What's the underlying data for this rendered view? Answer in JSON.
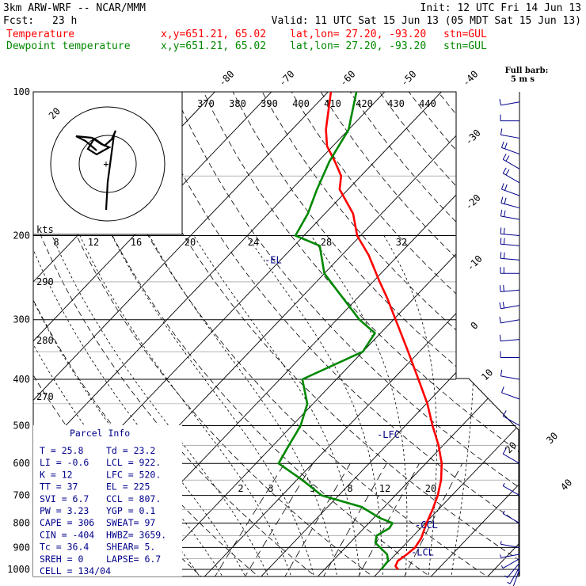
{
  "header": {
    "model": "3km ARW-WRF -- NCAR/MMM",
    "init": "Init: 12 UTC Fri 14 Jun 13",
    "fcst_label": "Fcst:",
    "fcst_value": "23 h",
    "valid": "Valid: 11 UTC Sat 15 Jun 13 (05 MDT Sat 15 Jun 13)",
    "temp_line": {
      "name": "Temperature",
      "loc": "x,y=651.21, 65.02",
      "latlon": "lat,lon= 27.20, -93.20",
      "stn": "stn=GUL"
    },
    "dew_line": {
      "name": "Dewpoint temperature",
      "loc": "x,y=651.21, 65.02",
      "latlon": "lat,lon= 27.20, -93.20",
      "stn": "stn=GUL"
    }
  },
  "colors": {
    "temperature": "#ff0000",
    "dewpoint": "#008800",
    "wind": "#00008b",
    "annotation": "#00008b",
    "grid": "#000000"
  },
  "barb_title": {
    "line1": "Full barb:",
    "line2": "5 m s"
  },
  "chart_data": {
    "type": "line",
    "chart_kind": "skew-T log-P sounding",
    "y_axis": {
      "scale": "log pressure (hPa)",
      "range": [
        1000,
        100
      ],
      "ticks": [
        "100",
        "200",
        "300",
        "400",
        "500",
        "600",
        "700",
        "800",
        "900",
        "1000"
      ]
    },
    "temp_isotherm_labels": [
      "-80",
      "-70",
      "-60",
      "-50",
      "-40",
      "-30",
      "-20",
      "-10",
      "0",
      "10",
      "20",
      "30",
      "40"
    ],
    "theta_labels": [
      "370",
      "380",
      "390",
      "400",
      "410",
      "420",
      "430",
      "440"
    ],
    "mixing_ratio_upper_labels": [
      "8",
      "12",
      "16",
      "20",
      "24",
      "28",
      "32"
    ],
    "mixing_ratio_lower_labels": [
      "2",
      "3",
      "5",
      "8",
      "12",
      "20"
    ],
    "theta_e_labels": [
      "290",
      "280",
      "270"
    ],
    "series": [
      {
        "name": "Temperature",
        "unit": "C",
        "points": [
          [
            1000,
            23
          ],
          [
            985,
            22
          ],
          [
            960,
            21.5
          ],
          [
            930,
            22
          ],
          [
            900,
            22.3
          ],
          [
            860,
            21.8
          ],
          [
            800,
            20.2
          ],
          [
            750,
            19
          ],
          [
            700,
            17.5
          ],
          [
            650,
            15.5
          ],
          [
            600,
            12.8
          ],
          [
            550,
            9.2
          ],
          [
            500,
            4.8
          ],
          [
            450,
            0.2
          ],
          [
            400,
            -5.5
          ],
          [
            350,
            -12
          ],
          [
            300,
            -19.6
          ],
          [
            270,
            -24.8
          ],
          [
            250,
            -28.8
          ],
          [
            220,
            -35.2
          ],
          [
            200,
            -40.6
          ],
          [
            180,
            -45
          ],
          [
            160,
            -51.5
          ],
          [
            150,
            -53.5
          ],
          [
            140,
            -57
          ],
          [
            130,
            -61
          ],
          [
            120,
            -64
          ],
          [
            100,
            -69.5
          ]
        ]
      },
      {
        "name": "Dewpoint temperature",
        "unit": "C",
        "points": [
          [
            1000,
            20
          ],
          [
            960,
            19.8
          ],
          [
            930,
            18.5
          ],
          [
            880,
            14.5
          ],
          [
            850,
            13.5
          ],
          [
            820,
            14.5
          ],
          [
            800,
            14.2
          ],
          [
            780,
            11
          ],
          [
            740,
            6
          ],
          [
            700,
            -3
          ],
          [
            650,
            -9
          ],
          [
            600,
            -16
          ],
          [
            560,
            -17
          ],
          [
            500,
            -18.5
          ],
          [
            450,
            -21
          ],
          [
            400,
            -26
          ],
          [
            350,
            -20
          ],
          [
            320,
            -21
          ],
          [
            300,
            -26
          ],
          [
            260,
            -35
          ],
          [
            240,
            -40
          ],
          [
            210,
            -45.5
          ],
          [
            200,
            -51.5
          ],
          [
            180,
            -53
          ],
          [
            160,
            -55.5
          ],
          [
            140,
            -58
          ],
          [
            120,
            -60
          ],
          [
            100,
            -65
          ]
        ]
      }
    ],
    "levels": [
      {
        "label": "-EL",
        "p": 225
      },
      {
        "label": "-LFC",
        "p": 522
      },
      {
        "label": "-CCL",
        "p": 807
      },
      {
        "label": "-LCL",
        "p": 922
      }
    ],
    "wind_barbs": [
      {
        "p": 1000,
        "dir": 200,
        "spd": 2.5
      },
      {
        "p": 990,
        "dir": 210,
        "spd": 2.5
      },
      {
        "p": 970,
        "dir": 220,
        "spd": 2.5
      },
      {
        "p": 950,
        "dir": 240,
        "spd": 2.5
      },
      {
        "p": 930,
        "dir": 260,
        "spd": 2.5
      },
      {
        "p": 900,
        "dir": 280,
        "spd": 2.5
      },
      {
        "p": 800,
        "dir": 300,
        "spd": 2.5
      },
      {
        "p": 700,
        "dir": 300,
        "spd": 2.5
      },
      {
        "p": 600,
        "dir": 300,
        "spd": 5
      },
      {
        "p": 500,
        "dir": 300,
        "spd": 5
      },
      {
        "p": 440,
        "dir": 290,
        "spd": 5
      },
      {
        "p": 400,
        "dir": 280,
        "spd": 5
      },
      {
        "p": 360,
        "dir": 270,
        "spd": 5
      },
      {
        "p": 330,
        "dir": 265,
        "spd": 5
      },
      {
        "p": 300,
        "dir": 260,
        "spd": 5
      },
      {
        "p": 280,
        "dir": 260,
        "spd": 10
      },
      {
        "p": 260,
        "dir": 265,
        "spd": 10
      },
      {
        "p": 240,
        "dir": 270,
        "spd": 10
      },
      {
        "p": 225,
        "dir": 275,
        "spd": 10
      },
      {
        "p": 210,
        "dir": 275,
        "spd": 10
      },
      {
        "p": 200,
        "dir": 275,
        "spd": 10
      },
      {
        "p": 185,
        "dir": 280,
        "spd": 10
      },
      {
        "p": 175,
        "dir": 285,
        "spd": 10
      },
      {
        "p": 165,
        "dir": 290,
        "spd": 10
      },
      {
        "p": 155,
        "dir": 300,
        "spd": 10
      },
      {
        "p": 145,
        "dir": 300,
        "spd": 10
      },
      {
        "p": 135,
        "dir": 290,
        "spd": 10
      },
      {
        "p": 125,
        "dir": 280,
        "spd": 5
      },
      {
        "p": 115,
        "dir": 270,
        "spd": 5
      },
      {
        "p": 105,
        "dir": 260,
        "spd": 5
      }
    ],
    "hodograph": {
      "ring_label": "20",
      "units_label": "kts"
    }
  },
  "parcel_info": {
    "title": "Parcel Info",
    "rows": [
      [
        "T  =    25.8",
        "Td = 23.2"
      ],
      [
        "LI =    -0.6",
        "LCL =  922."
      ],
      [
        "K  =      12",
        "LFC = 520."
      ],
      [
        "TT =      37",
        "EL  =  225"
      ],
      [
        "SVI =    6.7",
        "CCL = 807."
      ],
      [
        "PW =    3.23",
        "YGP =  0.1"
      ],
      [
        "CAPE =   306",
        "SWEAT= 97"
      ],
      [
        "CIN =   -404",
        "HWBZ= 3659."
      ],
      [
        "Tc =    36.4",
        "SHEAR= 5."
      ],
      [
        "SREH =     0",
        "LAPSE= 6.7"
      ],
      [
        "CELL = 134/04",
        ""
      ]
    ]
  }
}
